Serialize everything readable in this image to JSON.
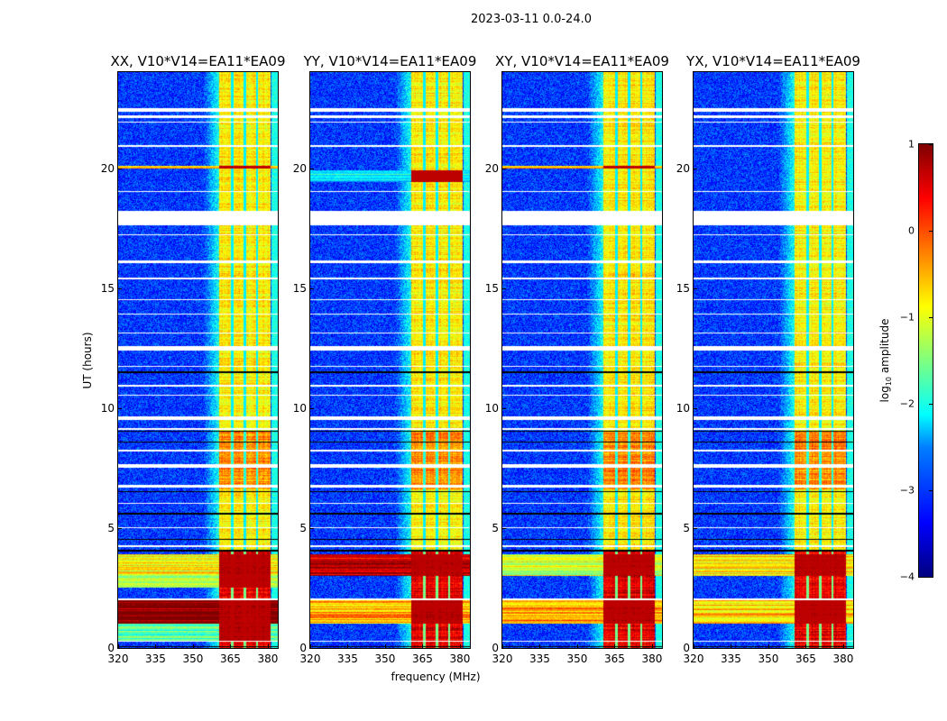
{
  "chart_data": {
    "type": "heatmap",
    "suptitle": "2023-03-11 0.0-24.0",
    "xlabel": "frequency (MHz)",
    "ylabel": "UT (hours)",
    "xlim": [
      320,
      384
    ],
    "ylim": [
      0,
      24
    ],
    "xticks": [
      "320",
      "335",
      "350",
      "365",
      "380"
    ],
    "xtick_values": [
      320,
      335,
      350,
      365,
      380
    ],
    "yticks": [
      "0",
      "5",
      "10",
      "15",
      "20"
    ],
    "ytick_values": [
      0,
      5,
      10,
      15,
      20
    ],
    "colormap": "jet",
    "colorbar": {
      "label": "log",
      "label_sub": "10",
      "label_rest": " amplitude",
      "range": [
        -4,
        1
      ],
      "ticks": [
        "1",
        "0",
        "−1",
        "−2",
        "−3",
        "−4"
      ],
      "tick_values": [
        1,
        0,
        -1,
        -2,
        -3,
        -4
      ]
    },
    "background_level": -3.1,
    "signal_band_mhz": [
      360.5,
      381
    ],
    "subband_gaps_mhz": [
      365.7,
      370.7,
      375.7
    ],
    "signal_level": -0.8,
    "strong_intervals_hours": [
      [
        0,
        4.0,
        1.3
      ],
      [
        6.6,
        9.0,
        0.5
      ]
    ],
    "flagged_rows_hours": [
      [
        22.35,
        22.5
      ],
      [
        22.1,
        22.2
      ],
      [
        21.9,
        21.95
      ],
      [
        20.9,
        20.95
      ],
      [
        19.0,
        19.05
      ],
      [
        18.2,
        17.6
      ],
      [
        17.2,
        17.25
      ],
      [
        16.05,
        16.15
      ],
      [
        15.35,
        15.45
      ],
      [
        14.5,
        14.55
      ],
      [
        13.9,
        13.95
      ],
      [
        13.1,
        13.15
      ],
      [
        12.4,
        12.6
      ],
      [
        11.7,
        11.75
      ],
      [
        10.9,
        10.95
      ],
      [
        10.5,
        10.55
      ],
      [
        9.5,
        9.65
      ],
      [
        9.1,
        9.15
      ],
      [
        8.2,
        8.25
      ],
      [
        7.5,
        7.65
      ],
      [
        6.7,
        6.8
      ],
      [
        6.0,
        6.05
      ],
      [
        5.0,
        5.05
      ],
      [
        4.2,
        4.27
      ],
      [
        2.0,
        2.05
      ],
      [
        0.25,
        0.3
      ]
    ],
    "black_rows_hours": [
      [
        11.45,
        11.52
      ],
      [
        9.0,
        9.06
      ],
      [
        8.55,
        8.6
      ],
      [
        6.48,
        6.55
      ],
      [
        5.55,
        5.62
      ],
      [
        4.5,
        4.56
      ],
      [
        4.02,
        4.08
      ],
      [
        0.02,
        0.08
      ]
    ],
    "panels": [
      {
        "title": "XX, V10*V14=EA11*EA09",
        "rfi_rows_hours": [
          [
            1.0,
            2.05,
            1.0
          ],
          [
            2.5,
            3.0,
            -1.2
          ],
          [
            3.0,
            3.9,
            -0.9
          ],
          [
            0.3,
            1.0,
            -1.8
          ],
          [
            20.0,
            20.08,
            -0.3
          ]
        ]
      },
      {
        "title": "YY, V10*V14=EA11*EA09",
        "rfi_rows_hours": [
          [
            3.0,
            3.9,
            0.6
          ],
          [
            1.0,
            2.05,
            -0.5
          ],
          [
            19.4,
            19.9,
            -2.2
          ]
        ]
      },
      {
        "title": "XY, V10*V14=EA11*EA09",
        "rfi_rows_hours": [
          [
            1.0,
            2.05,
            -0.4
          ],
          [
            3.0,
            3.9,
            -1.1
          ],
          [
            20.0,
            20.08,
            -0.5
          ]
        ]
      },
      {
        "title": "YX, V10*V14=EA11*EA09",
        "rfi_rows_hours": [
          [
            1.0,
            2.05,
            -0.6
          ],
          [
            3.0,
            3.9,
            -0.8
          ]
        ]
      }
    ]
  }
}
